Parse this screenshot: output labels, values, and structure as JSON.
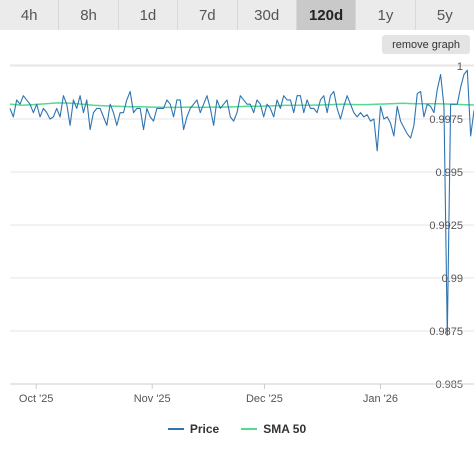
{
  "tabs": [
    {
      "label": "4h",
      "active": false
    },
    {
      "label": "8h",
      "active": false
    },
    {
      "label": "1d",
      "active": false
    },
    {
      "label": "7d",
      "active": false
    },
    {
      "label": "30d",
      "active": false
    },
    {
      "label": "120d",
      "active": true
    },
    {
      "label": "1y",
      "active": false
    },
    {
      "label": "5y",
      "active": false
    }
  ],
  "remove_button": "remove graph",
  "colors": {
    "price": "#2f74b1",
    "sma": "#55d98e",
    "grid": "#e6e6e6",
    "axis": "#cccccc",
    "text": "#555555"
  },
  "legend": [
    {
      "label": "Price",
      "color": "#2f74b1"
    },
    {
      "label": "SMA 50",
      "color": "#55d98e"
    }
  ],
  "chart_data": {
    "type": "line",
    "x_range": [
      "2025-09-24",
      "2026-01-26"
    ],
    "x_ticks": [
      {
        "date": "2025-10-01",
        "label": "Oct '25"
      },
      {
        "date": "2025-11-01",
        "label": "Nov '25"
      },
      {
        "date": "2025-12-01",
        "label": "Dec '25"
      },
      {
        "date": "2026-01-01",
        "label": "Jan '26"
      }
    ],
    "ylim": [
      0.985,
      1.0
    ],
    "y_ticks": [
      1.0,
      0.9975,
      0.995,
      0.9925,
      0.99,
      0.9875,
      0.985
    ],
    "y_tick_labels": [
      "1",
      "0.9975",
      "0.995",
      "0.9925",
      "0.99",
      "0.9875",
      "0.985"
    ],
    "grid": true,
    "legend_position": "bottom",
    "series": [
      {
        "name": "Price",
        "values": [
          0.998,
          0.9976,
          0.9984,
          0.9982,
          0.9986,
          0.9984,
          0.9982,
          0.9978,
          0.9982,
          0.9976,
          0.998,
          0.9978,
          0.9975,
          0.9976,
          0.998,
          0.9976,
          0.9986,
          0.9982,
          0.9972,
          0.9984,
          0.998,
          0.9986,
          0.9978,
          0.9984,
          0.997,
          0.9978,
          0.998,
          0.998,
          0.9976,
          0.9972,
          0.9982,
          0.9978,
          0.9972,
          0.9978,
          0.9978,
          0.9984,
          0.9988,
          0.9978,
          0.998,
          0.998,
          0.997,
          0.998,
          0.9976,
          0.9974,
          0.998,
          0.998,
          0.998,
          0.9984,
          0.9982,
          0.9976,
          0.9984,
          0.9984,
          0.997,
          0.9976,
          0.998,
          0.9982,
          0.9984,
          0.9978,
          0.9982,
          0.9986,
          0.998,
          0.9972,
          0.9984,
          0.998,
          0.9982,
          0.9984,
          0.9976,
          0.9974,
          0.9978,
          0.9986,
          0.9984,
          0.9982,
          0.9982,
          0.9978,
          0.9984,
          0.9982,
          0.9976,
          0.9982,
          0.998,
          0.9976,
          0.9984,
          0.998,
          0.9986,
          0.9984,
          0.9984,
          0.9978,
          0.9986,
          0.9986,
          0.9978,
          0.9984,
          0.998,
          0.998,
          0.9978,
          0.9984,
          0.9986,
          0.9978,
          0.9986,
          0.9988,
          0.998,
          0.9975,
          0.9981,
          0.9986,
          0.9982,
          0.9978,
          0.9976,
          0.9978,
          0.9976,
          0.9977,
          0.9974,
          0.9975,
          0.996,
          0.9981,
          0.9975,
          0.9976,
          0.9973,
          0.9967,
          0.9981,
          0.9974,
          0.9971,
          0.9968,
          0.9966,
          0.9972,
          0.9987,
          0.9988,
          0.9976,
          0.9982,
          0.9981,
          0.9978,
          0.9989,
          0.9996,
          0.9981,
          0.9873,
          0.9982,
          0.9982,
          0.9982,
          0.999,
          0.9996,
          0.9998,
          0.9967,
          0.9979
        ]
      },
      {
        "name": "SMA 50",
        "values": [
          0.9982,
          0.99815,
          0.99818,
          0.99822,
          0.99826,
          0.99825,
          0.9982,
          0.99815,
          0.99812,
          0.9981,
          0.99808,
          0.99808,
          0.99806,
          0.99805,
          0.99805,
          0.99806,
          0.99805,
          0.99806,
          0.99806,
          0.99808,
          0.9981,
          0.9981,
          0.99812,
          0.99814,
          0.99815,
          0.99815,
          0.99816,
          0.99818,
          0.9982,
          0.99818,
          0.99818,
          0.9982,
          0.99822,
          0.99824,
          0.99822,
          0.99822,
          0.99822,
          0.9982,
          0.99818,
          0.99816
        ]
      }
    ]
  }
}
